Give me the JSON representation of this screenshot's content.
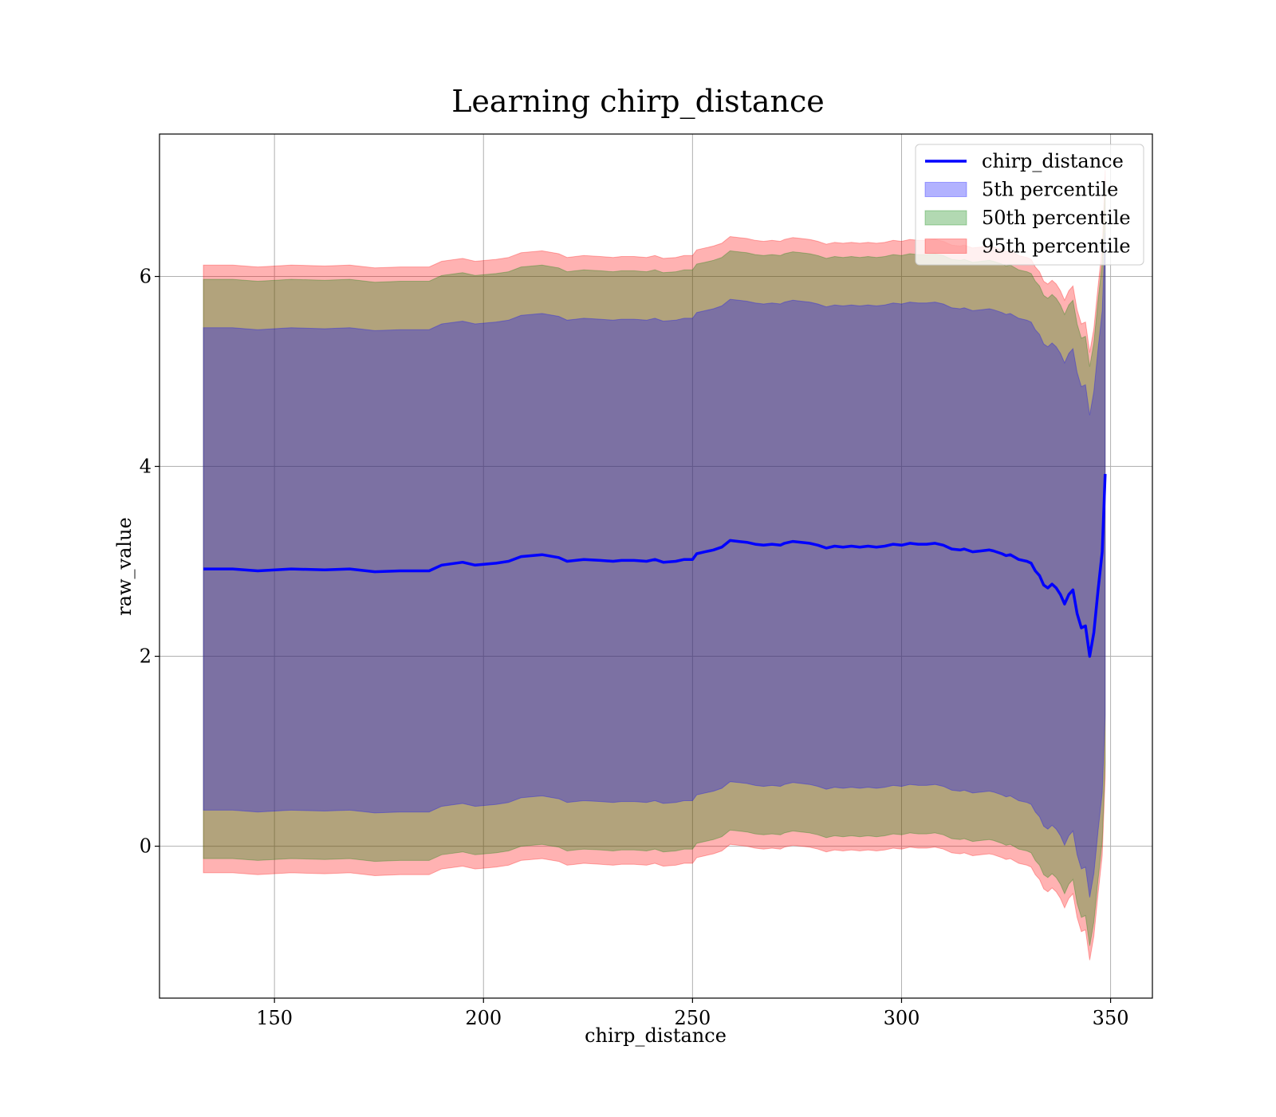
{
  "chart_data": {
    "type": "area",
    "title": "Learning chirp_distance",
    "xlabel": "chirp_distance",
    "ylabel": "raw_value",
    "xlim": [
      122.5,
      360
    ],
    "ylim": [
      -1.6,
      7.5
    ],
    "xticks": [
      150,
      200,
      250,
      300,
      350
    ],
    "yticks": [
      0,
      2,
      4,
      6
    ],
    "grid": true,
    "legend_position": "top-right",
    "x": [
      133,
      140,
      146,
      154,
      162,
      168,
      174,
      180,
      187,
      190,
      195,
      198,
      203,
      206,
      209,
      214,
      218,
      220,
      222,
      224,
      228,
      231,
      233,
      236,
      239,
      241,
      243,
      246,
      248,
      250,
      251,
      253,
      255,
      257,
      259,
      261,
      263,
      265,
      267,
      269,
      271,
      272,
      274,
      276,
      278,
      280,
      282,
      284,
      286,
      288,
      290,
      292,
      294,
      296,
      298,
      300,
      302,
      304,
      306,
      308,
      310,
      312,
      314,
      315,
      317,
      319,
      321,
      322,
      324,
      325,
      326,
      328,
      330,
      331,
      332,
      333,
      334,
      335,
      336,
      337,
      338,
      339,
      340,
      341,
      342,
      343,
      344,
      345,
      346,
      347,
      348,
      348.7
    ],
    "series": [
      {
        "name": "chirp_distance",
        "kind": "line",
        "color": "#0000ff",
        "values": [
          2.92,
          2.92,
          2.9,
          2.92,
          2.91,
          2.92,
          2.89,
          2.9,
          2.9,
          2.96,
          2.99,
          2.96,
          2.98,
          3.0,
          3.05,
          3.07,
          3.04,
          3.0,
          3.01,
          3.02,
          3.01,
          3.0,
          3.01,
          3.01,
          3.0,
          3.02,
          2.99,
          3.0,
          3.02,
          3.02,
          3.08,
          3.1,
          3.12,
          3.15,
          3.22,
          3.21,
          3.2,
          3.18,
          3.17,
          3.18,
          3.17,
          3.19,
          3.21,
          3.2,
          3.19,
          3.17,
          3.14,
          3.16,
          3.15,
          3.16,
          3.15,
          3.16,
          3.15,
          3.16,
          3.18,
          3.17,
          3.19,
          3.18,
          3.18,
          3.19,
          3.17,
          3.13,
          3.12,
          3.13,
          3.1,
          3.11,
          3.12,
          3.11,
          3.08,
          3.06,
          3.07,
          3.02,
          3.0,
          2.98,
          2.9,
          2.85,
          2.75,
          2.72,
          2.76,
          2.72,
          2.65,
          2.55,
          2.65,
          2.7,
          2.45,
          2.3,
          2.32,
          2.0,
          2.25,
          2.7,
          3.1,
          3.92
        ]
      },
      {
        "name": "5th percentile",
        "kind": "band",
        "color": "#0000ff",
        "offset": 2.54
      },
      {
        "name": "50th percentile",
        "kind": "band",
        "color": "#008000",
        "offset": 3.05
      },
      {
        "name": "95th percentile",
        "kind": "band",
        "color": "#ff0000",
        "offset": 3.2
      }
    ]
  }
}
